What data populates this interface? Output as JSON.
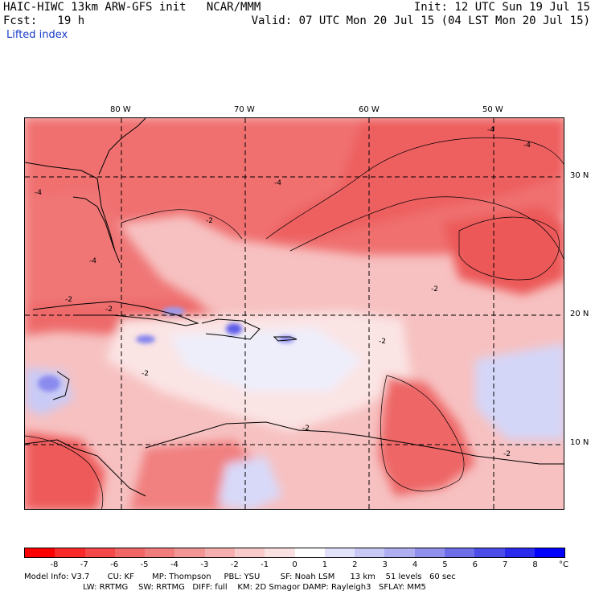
{
  "header": {
    "line1_left": "HAIC-HIWC 13km ARW-GFS init   NCAR/MMM",
    "line1_right": "Init: 12 UTC Sun 19 Jul 15",
    "line2_left": "Fcst:   19 h",
    "line2_right": "Valid: 07 UTC Mon 20 Jul 15 (04 LST Mon 20 Jul 15)",
    "field_label": "Lifted index"
  },
  "longitude_labels": [
    "80 W",
    "70 W",
    "60 W",
    "50 W"
  ],
  "latitude_labels": [
    "30 N",
    "20 N",
    "10 N"
  ],
  "colorbar": {
    "ticks": [
      "-8",
      "-7",
      "-6",
      "-5",
      "-4",
      "-3",
      "-2",
      "-1",
      "0",
      "1",
      "2",
      "3",
      "4",
      "5",
      "6",
      "7",
      "8"
    ],
    "unit": "°C",
    "colors": [
      "#ff0000",
      "#fa2a2a",
      "#f54848",
      "#f26565",
      "#f07c7c",
      "#f29595",
      "#f5afaf",
      "#f8caca",
      "#fbe2e2",
      "#ffffff",
      "#e2e2fb",
      "#c8c8f5",
      "#aeaef0",
      "#9090ec",
      "#6e6ee8",
      "#4c4ce8",
      "#2a2aef",
      "#0000ff"
    ]
  },
  "model_info": {
    "line1": "Model Info: V3.7       CU: KF       MP: Thompson     PBL: YSU        SF: Noah LSM      13 km    51 levels   60 sec",
    "line2": "                       LW: RRTMG    SW: RRTMG   DIFF: full    KM: 2D Smagor DAMP: Rayleigh3   SFLAY: MM5"
  },
  "contour_labels": [
    "-4",
    "-4",
    "-2",
    "-4",
    "-2",
    "-2",
    "-4",
    "-2",
    "-2",
    "-2",
    "-2",
    "-4",
    "-2"
  ]
}
